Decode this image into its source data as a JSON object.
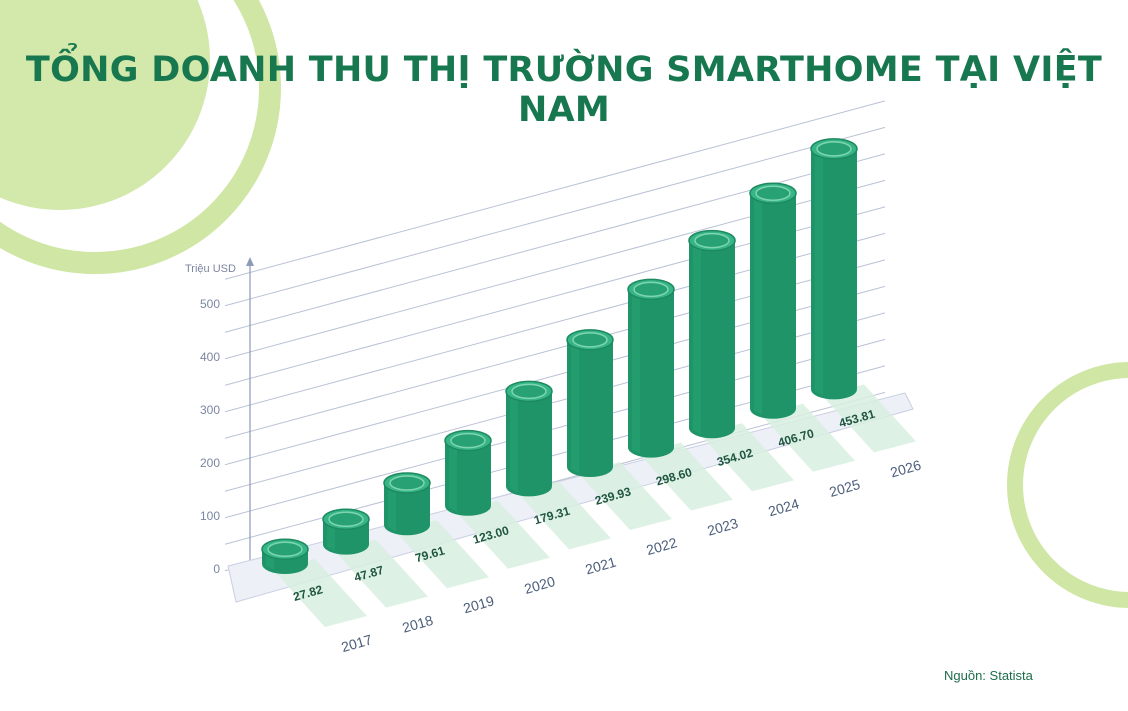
{
  "title": "TỔNG DOANH THU THỊ TRƯỜNG SMARTHOME TẠI VIỆT NAM",
  "source": "Nguồn: Statista",
  "colors": {
    "title": "#17784f",
    "bar_body": "#1f9469",
    "bar_top": "#2fae80",
    "circle_decor": "#cfe6a4",
    "band": "#d8eee0"
  },
  "chart_data": {
    "type": "bar",
    "categories": [
      "2017",
      "2018",
      "2019",
      "2020",
      "2021",
      "2022",
      "2023",
      "2024",
      "2025",
      "2026"
    ],
    "values": [
      27.82,
      47.87,
      79.61,
      123.0,
      179.31,
      239.93,
      298.6,
      354.02,
      406.7,
      453.81
    ],
    "value_labels": [
      "27.82",
      "47.87",
      "79.61",
      "123.00",
      "179.31",
      "239.93",
      "298.60",
      "354.02",
      "406.70",
      "453.81"
    ],
    "ylabel": "Triệu USD",
    "yticks": [
      "0",
      "100",
      "200",
      "300",
      "400",
      "500"
    ],
    "ylim": [
      0,
      550
    ],
    "grid": true,
    "style": "3d-cylinder"
  }
}
